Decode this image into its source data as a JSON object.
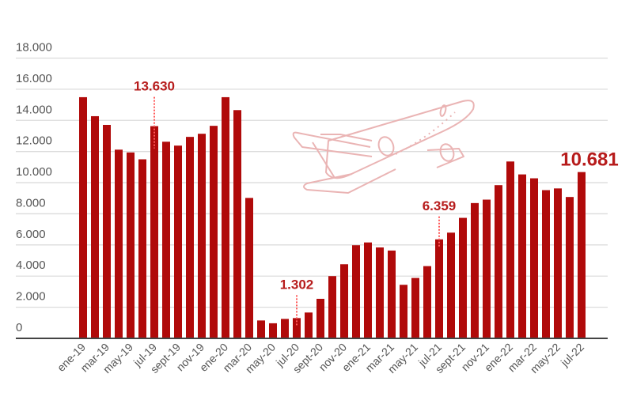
{
  "chart_data": {
    "type": "bar",
    "title": "",
    "xlabel": "",
    "ylabel": "",
    "ylim": [
      0,
      18000
    ],
    "grid": true,
    "y_ticks": [
      {
        "value": 0,
        "label": "0"
      },
      {
        "value": 2000,
        "label": "2.000"
      },
      {
        "value": 4000,
        "label": "4.000"
      },
      {
        "value": 6000,
        "label": "6.000"
      },
      {
        "value": 8000,
        "label": "8.000"
      },
      {
        "value": 10000,
        "label": "10.000"
      },
      {
        "value": 12000,
        "label": "12.000"
      },
      {
        "value": 14000,
        "label": "14.000"
      },
      {
        "value": 16000,
        "label": "16.000"
      },
      {
        "value": 18000,
        "label": "18.000"
      }
    ],
    "categories": [
      "ene-19",
      "feb-19",
      "mar-19",
      "abr-19",
      "may-19",
      "jun-19",
      "jul-19",
      "ago-19",
      "sept-19",
      "oct-19",
      "nov-19",
      "dic-19",
      "ene-20",
      "feb-20",
      "mar-20",
      "abr-20",
      "may-20",
      "jun-20",
      "jul-20",
      "ago-20",
      "sept-20",
      "oct-20",
      "nov-20",
      "dic-20",
      "ene-21",
      "feb-21",
      "mar-21",
      "abr-21",
      "may-21",
      "jun-21",
      "jul-21",
      "ago-21",
      "sept-21",
      "oct-21",
      "nov-21",
      "dic-21",
      "ene-22",
      "feb-22",
      "mar-22",
      "abr-22",
      "may-22",
      "jun-22",
      "jul-22"
    ],
    "visible_x_labels": [
      "ene-19",
      "mar-19",
      "may-19",
      "jul-19",
      "sept-19",
      "nov-19",
      "ene-20",
      "mar-20",
      "may-20",
      "jul-20",
      "sept-20",
      "nov-20",
      "ene-21",
      "mar-21",
      "may-21",
      "jul-21",
      "sept-21",
      "nov-21",
      "ene-22",
      "mar-22",
      "may-22",
      "jul-22"
    ],
    "values": [
      15490,
      14270,
      13710,
      12120,
      11940,
      11500,
      13630,
      12630,
      12380,
      12940,
      13140,
      13650,
      15490,
      14660,
      9020,
      1150,
      970,
      1250,
      1302,
      1660,
      2540,
      4000,
      4760,
      5980,
      6160,
      5840,
      5640,
      3440,
      3880,
      4640,
      6359,
      6790,
      7740,
      8690,
      8910,
      9840,
      11360,
      10530,
      10280,
      9520,
      9630,
      9080,
      10681
    ],
    "annotations": [
      {
        "category": "jul-19",
        "label": "13.630",
        "value": 13630
      },
      {
        "category": "jul-20",
        "label": "1.302",
        "value": 1302
      },
      {
        "category": "jul-21",
        "label": "6.359",
        "value": 6359
      },
      {
        "category": "jul-22",
        "label": "10.681",
        "value": 10681,
        "emphasis": true
      }
    ],
    "colors": {
      "bar": "#b00a0a",
      "annotation": "#b71c1c",
      "grid": "#dcdcdc",
      "axis": "#444444",
      "plane": "#eab4b4"
    }
  }
}
